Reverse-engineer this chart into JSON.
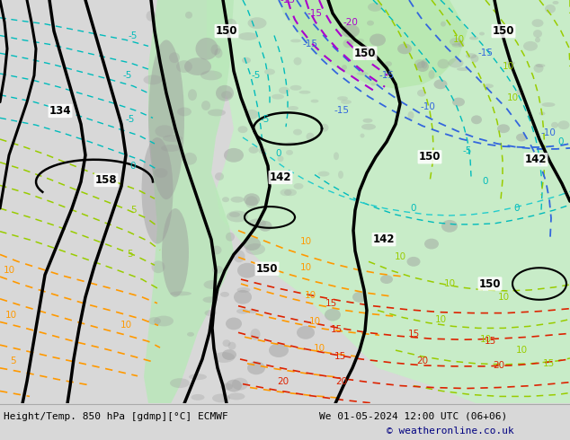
{
  "title_left": "Height/Temp. 850 hPa [gdmp][°C] ECMWF",
  "title_right": "We 01-05-2024 12:00 UTC (06+06)",
  "copyright": "© weatheronline.co.uk",
  "bg_color": "#d8d8d8",
  "ocean_color": "#e0e0e8",
  "land_green_light": "#cceecc",
  "land_green_mid": "#aaddaa",
  "mountain_gray": "#b0b0b0",
  "fig_width": 6.34,
  "fig_height": 4.9,
  "dpi": 100,
  "bottom_bar_color": "#e8e8e8",
  "copyright_color": "#000080"
}
